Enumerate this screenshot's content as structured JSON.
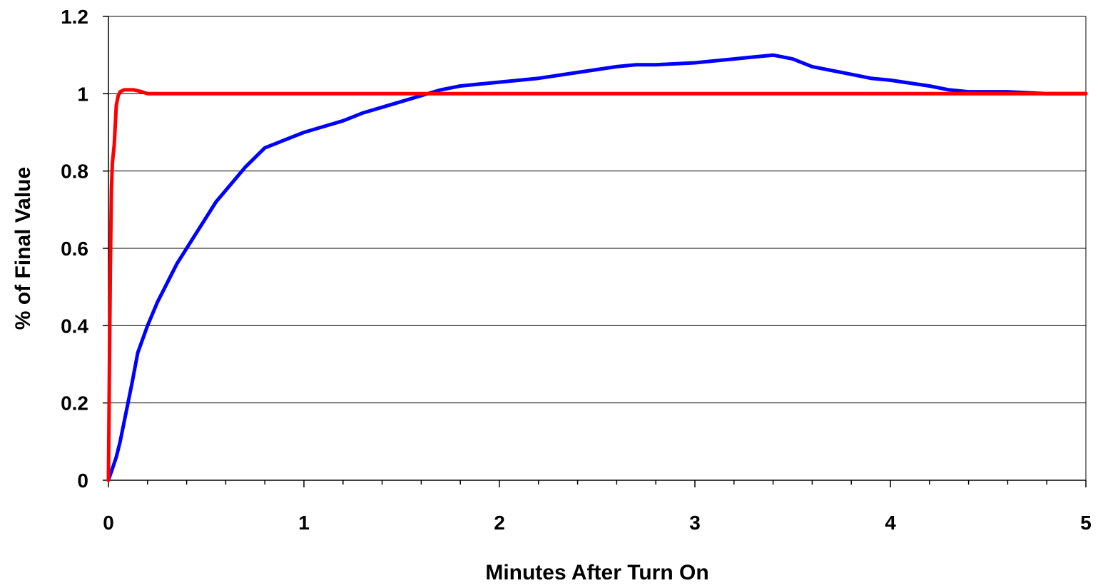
{
  "chart_data": {
    "type": "line",
    "title": "",
    "xlabel": "Minutes After Turn On",
    "ylabel": "% of Final Value",
    "xlim": [
      0,
      5
    ],
    "ylim": [
      0,
      1.2
    ],
    "x_ticks": [
      0,
      1,
      2,
      3,
      4,
      5
    ],
    "x_tick_labels": [
      "0",
      "1",
      "2",
      "3",
      "4",
      "5"
    ],
    "y_ticks": [
      0,
      0.2,
      0.4,
      0.6,
      0.8,
      1,
      1.2
    ],
    "y_tick_labels": [
      "0",
      "0.2",
      "0.4",
      "0.6",
      "0.8",
      "1",
      "1.2"
    ],
    "x_minor_tick_step": 0.2,
    "grid": "horizontal",
    "legend": "none",
    "series": [
      {
        "color": "#0000ff",
        "x": [
          0,
          0.02,
          0.04,
          0.06,
          0.08,
          0.1,
          0.12,
          0.15,
          0.2,
          0.25,
          0.3,
          0.35,
          0.4,
          0.45,
          0.5,
          0.55,
          0.6,
          0.7,
          0.8,
          0.85,
          0.9,
          1.0,
          1.1,
          1.2,
          1.3,
          1.4,
          1.5,
          1.6,
          1.7,
          1.8,
          1.9,
          2.0,
          2.2,
          2.4,
          2.6,
          2.7,
          2.8,
          3.0,
          3.2,
          3.3,
          3.4,
          3.5,
          3.6,
          3.8,
          3.9,
          4.0,
          4.2,
          4.3,
          4.4,
          4.6,
          4.8,
          5.0
        ],
        "y": [
          0,
          0.03,
          0.06,
          0.1,
          0.15,
          0.2,
          0.25,
          0.33,
          0.4,
          0.46,
          0.51,
          0.56,
          0.6,
          0.64,
          0.68,
          0.72,
          0.75,
          0.81,
          0.86,
          0.87,
          0.88,
          0.9,
          0.915,
          0.93,
          0.95,
          0.965,
          0.98,
          0.995,
          1.01,
          1.02,
          1.025,
          1.03,
          1.04,
          1.055,
          1.07,
          1.075,
          1.075,
          1.08,
          1.09,
          1.095,
          1.1,
          1.09,
          1.07,
          1.05,
          1.04,
          1.035,
          1.02,
          1.01,
          1.005,
          1.005,
          1.0,
          1.0
        ]
      },
      {
        "color": "#ff0000",
        "x": [
          0,
          0.005,
          0.01,
          0.015,
          0.02,
          0.03,
          0.035,
          0.04,
          0.05,
          0.06,
          0.08,
          0.1,
          0.13,
          0.17,
          0.2,
          1,
          2,
          3,
          4,
          5
        ],
        "y": [
          0,
          0.3,
          0.55,
          0.75,
          0.82,
          0.87,
          0.92,
          0.97,
          0.995,
          1.005,
          1.01,
          1.01,
          1.01,
          1.005,
          1.0,
          1.0,
          1.0,
          1.0,
          1.0,
          1.0
        ]
      }
    ]
  }
}
